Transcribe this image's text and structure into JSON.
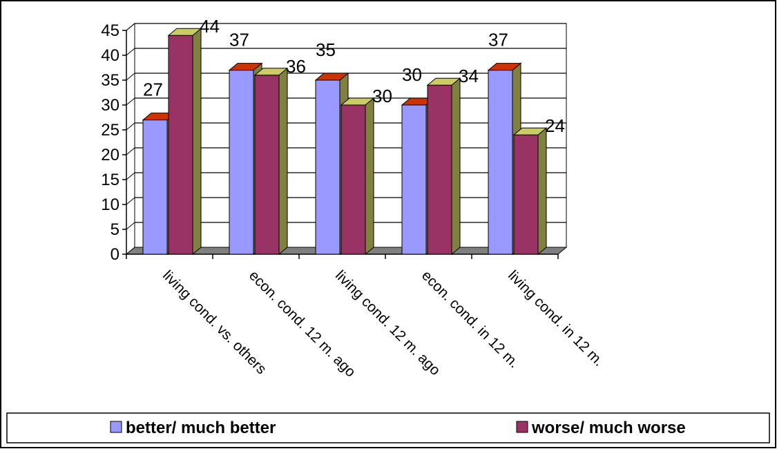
{
  "chart_data": {
    "type": "bar",
    "categories": [
      "living cond. vs. others",
      "econ. cond. 12 m. ago",
      "living cond. 12 m. ago",
      "econ. cond. in 12 m.",
      "living cond. in 12 m."
    ],
    "series": [
      {
        "name": "better/ much better",
        "values": [
          27,
          37,
          35,
          30,
          37
        ],
        "color": "#9999ff",
        "side_color": "#808040",
        "top_color": "#cc3300"
      },
      {
        "name": "worse/ much worse",
        "values": [
          44,
          36,
          30,
          34,
          24
        ],
        "color": "#993366",
        "side_color": "#808040",
        "top_color": "#cccc66"
      }
    ],
    "ylim": [
      0,
      45
    ],
    "yticks": [
      "0",
      "5",
      "10",
      "15",
      "20",
      "25",
      "30",
      "35",
      "40",
      "45"
    ],
    "grid": true,
    "legend_position": "bottom",
    "data_labels": true,
    "style": "3d-clustered-bar"
  }
}
